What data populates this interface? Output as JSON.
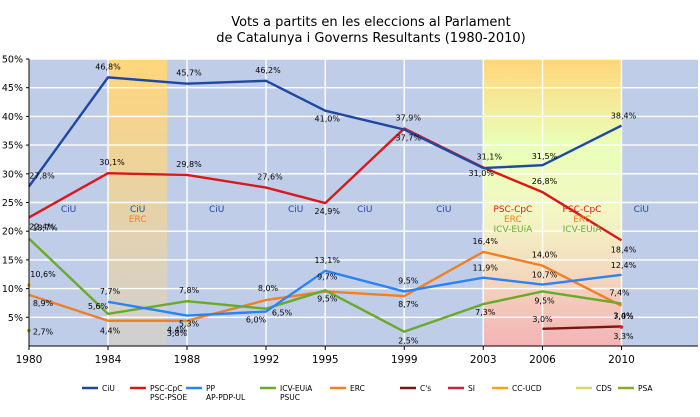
{
  "chart_data": {
    "type": "line",
    "title": [
      "Vots a partits en les eleccions al Parlament",
      "de Catalunya i Governs Resultants (1980-2010)"
    ],
    "x": [
      1980,
      1984,
      1988,
      1992,
      1995,
      1999,
      2003,
      2006,
      2010
    ],
    "ylim": [
      0,
      50
    ],
    "yticks": [
      "50%",
      "45%",
      "40%",
      "35%",
      "30%",
      "25%",
      "20%",
      "15%",
      "10%",
      "5%"
    ],
    "xticks": [
      "1980",
      "1984",
      "1988",
      "1992",
      "1995",
      "1999",
      "2003",
      "2006",
      "2010"
    ],
    "series": [
      {
        "name": "CiU",
        "color": "#1f48a0",
        "x": [
          1980,
          1984,
          1988,
          1992,
          1995,
          1999,
          2003,
          2006,
          2010
        ],
        "values": [
          27.8,
          46.8,
          45.7,
          46.2,
          41.0,
          37.7,
          31.0,
          31.5,
          38.4
        ],
        "labels": [
          "27,8%",
          "46,8%",
          "45,7%",
          "46,2%",
          "41,0%",
          "37,7%",
          "31,0%",
          "31,5%",
          "38,4%"
        ]
      },
      {
        "name": "PSC-CpC PSC-PSOE",
        "color": "#d7191c",
        "x": [
          1980,
          1984,
          1988,
          1992,
          1995,
          1999,
          2003,
          2006,
          2010
        ],
        "values": [
          22.4,
          30.1,
          29.8,
          27.6,
          24.9,
          37.9,
          31.1,
          26.8,
          18.4
        ],
        "labels": [
          "22,4%",
          "30,1%",
          "29,8%",
          "27,6%",
          "24,9%",
          "37,9%",
          "31,1%",
          "26,8%",
          "18,4%"
        ]
      },
      {
        "name": "PP AP-PDP-UL",
        "color": "#2b83f6",
        "x": [
          1984,
          1988,
          1992,
          1995,
          1999,
          2003,
          2006,
          2010
        ],
        "values": [
          7.7,
          5.3,
          6.0,
          13.1,
          9.5,
          11.9,
          10.7,
          12.4
        ],
        "labels": [
          "7,7%",
          "5,3%",
          "6,0%",
          "13,1%",
          "9,5%",
          "11,9%",
          "10,7%",
          "12,4%"
        ]
      },
      {
        "name": "ICV-EUiA PSUC",
        "color": "#6aaa2a",
        "x": [
          1980,
          1984,
          1988,
          1992,
          1995,
          1999,
          2003,
          2006,
          2010
        ],
        "values": [
          18.7,
          5.6,
          7.8,
          6.5,
          9.7,
          2.5,
          7.3,
          9.5,
          7.4
        ],
        "labels": [
          "18,7%",
          "5,6%",
          "7,8%",
          "6,5%",
          "9,7%",
          "2,5%",
          "7,3%",
          "9,5%",
          "7,4%"
        ]
      },
      {
        "name": "ERC",
        "color": "#ee8026",
        "x": [
          1980,
          1984,
          1988,
          1992,
          1995,
          1999,
          2003,
          2006,
          2010
        ],
        "values": [
          8.9,
          4.4,
          4.4,
          8.0,
          9.5,
          8.7,
          16.4,
          14.0,
          7.0
        ],
        "labels": [
          "8,9%",
          "4,4%",
          "4,4%",
          "8,0%",
          "9,5%",
          "8,7%",
          "16,4%",
          "14,0%",
          "7,0%"
        ]
      },
      {
        "name": "C's",
        "color": "#7b1515",
        "x": [
          2006,
          2010
        ],
        "values": [
          3.0,
          3.4
        ],
        "labels": [
          "3,0%",
          "3,4%"
        ]
      },
      {
        "name": "SI",
        "color": "#cc2244",
        "x": [
          2010
        ],
        "values": [
          3.3
        ],
        "labels": [
          "3,3%"
        ]
      },
      {
        "name": "CC-UCD",
        "color": "#f3a521",
        "x": [
          1980
        ],
        "values": [
          10.6
        ],
        "labels": [
          "10,6%"
        ]
      },
      {
        "name": "CDS",
        "color": "#d6d86a",
        "x": [
          1988
        ],
        "values": [
          3.8
        ],
        "labels": [
          "3,8%"
        ]
      },
      {
        "name": "PSA",
        "color": "#88aa33",
        "x": [
          1980
        ],
        "values": [
          2.7
        ],
        "labels": [
          "2,7%"
        ]
      }
    ],
    "governments": [
      {
        "from": 1980,
        "to": 1984,
        "parties": [
          "CiU"
        ]
      },
      {
        "from": 1984,
        "to": 1987,
        "parties": [
          "CiU",
          "ERC"
        ]
      },
      {
        "from": 1987,
        "to": 1992,
        "parties": [
          "CiU"
        ]
      },
      {
        "from": 1992,
        "to": 1995,
        "parties": [
          "CiU"
        ]
      },
      {
        "from": 1995,
        "to": 1999,
        "parties": [
          "CiU"
        ]
      },
      {
        "from": 1999,
        "to": 2003,
        "parties": [
          "CiU"
        ]
      },
      {
        "from": 2003,
        "to": 2006,
        "parties": [
          "PSC-CpC",
          "ERC",
          "ICV-EUiA"
        ]
      },
      {
        "from": 2006,
        "to": 2010,
        "parties": [
          "PSC-CpC",
          "ERC",
          "ICV-EUiA"
        ]
      },
      {
        "from": 2010,
        "to": 2012,
        "parties": [
          "CiU"
        ]
      }
    ],
    "legend": [
      {
        "name": "CiU",
        "sub": "",
        "color": "#1f48a0"
      },
      {
        "name": "PSC-CpC",
        "sub": "PSC-PSOE",
        "color": "#d7191c"
      },
      {
        "name": "PP",
        "sub": "AP-PDP-UL",
        "color": "#2b83f6"
      },
      {
        "name": "ICV-EUiA",
        "sub": "PSUC",
        "color": "#6aaa2a"
      },
      {
        "name": "ERC",
        "sub": "",
        "color": "#ee8026"
      },
      {
        "name": "C's",
        "sub": "",
        "color": "#7b1515"
      },
      {
        "name": "SI",
        "sub": "",
        "color": "#cc2244"
      },
      {
        "name": "CC-UCD",
        "sub": "",
        "color": "#f3a521"
      },
      {
        "name": "CDS",
        "sub": "",
        "color": "#d6d86a"
      },
      {
        "name": "PSA",
        "sub": "",
        "color": "#88aa33"
      }
    ],
    "legend_position": "bottom",
    "grid": true
  }
}
